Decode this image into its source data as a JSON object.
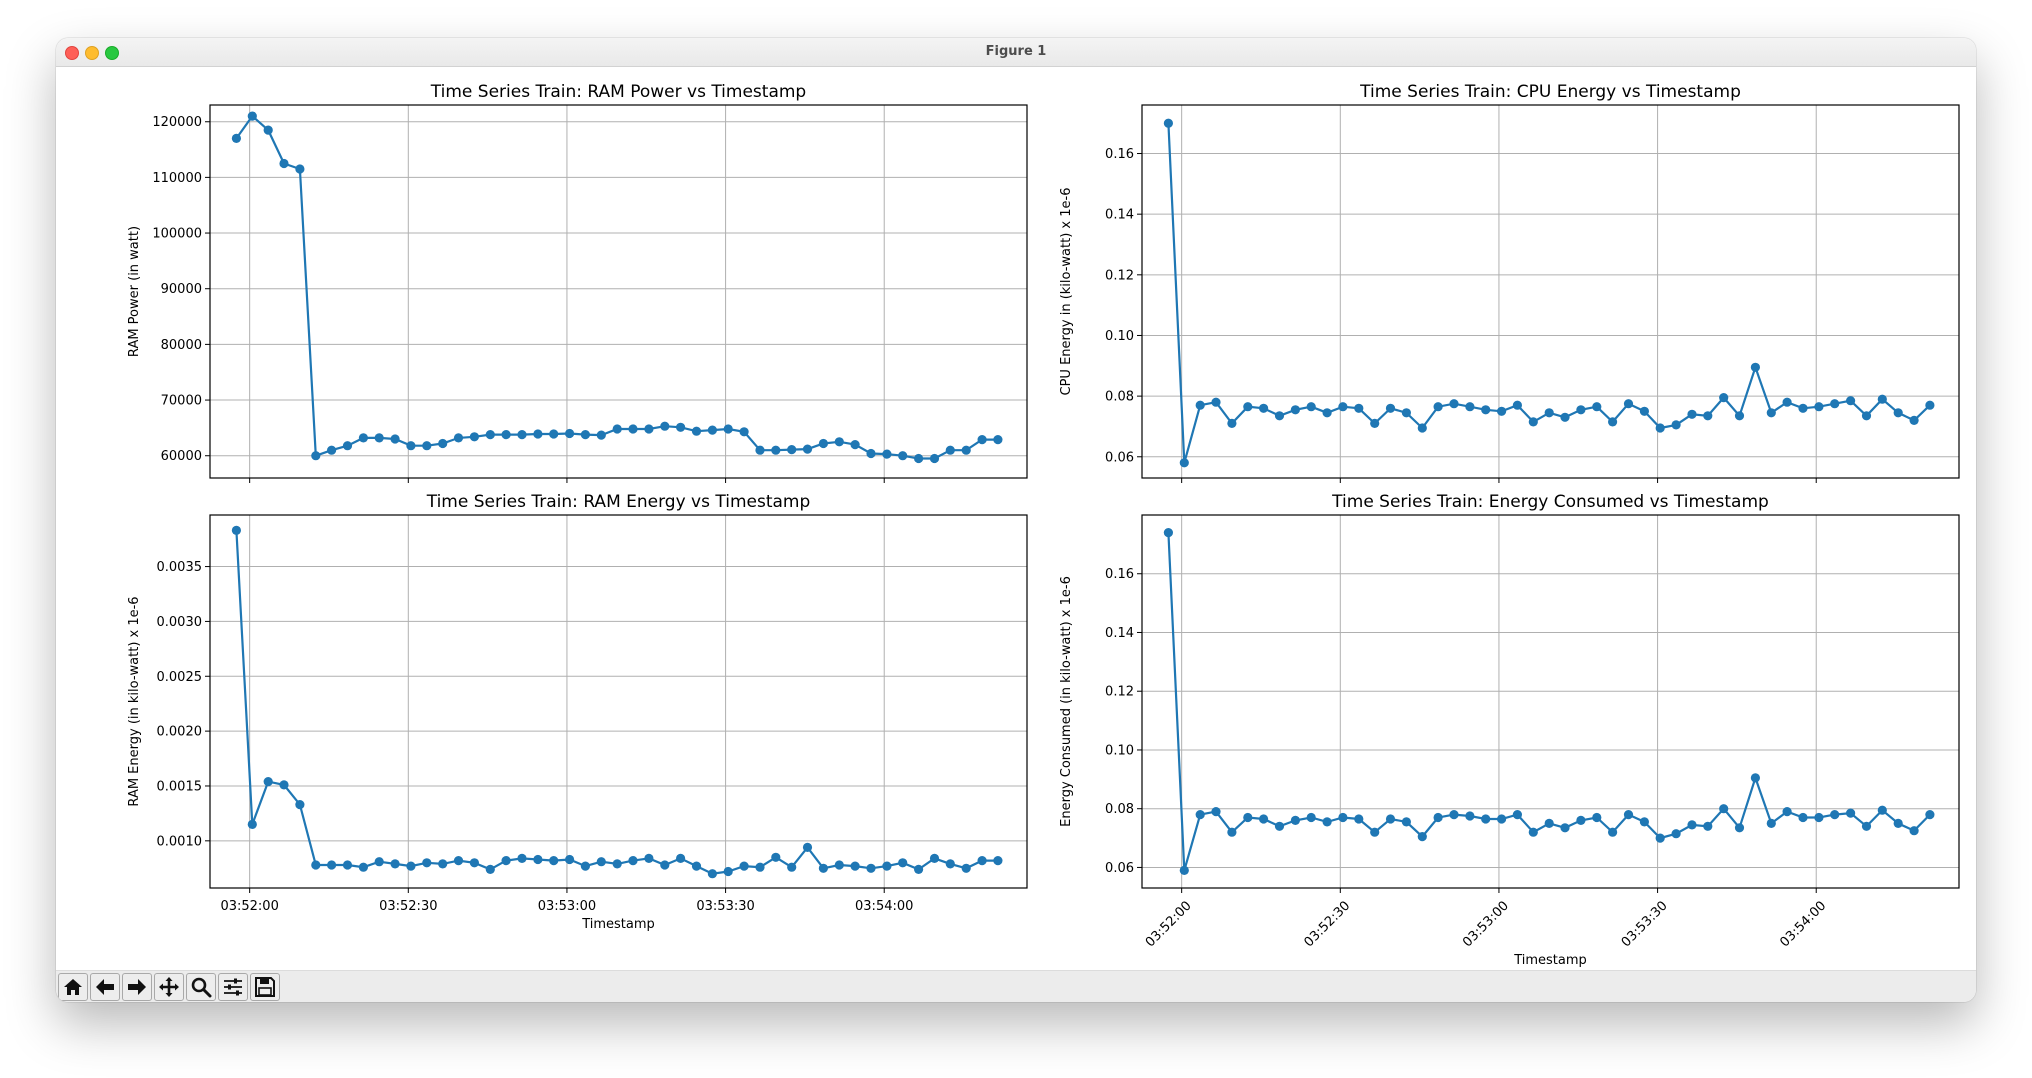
{
  "window": {
    "title": "Figure 1"
  },
  "toolbar": {
    "buttons": [
      {
        "name": "home-button",
        "icon": "home-icon"
      },
      {
        "name": "back-button",
        "icon": "arrow-left-icon"
      },
      {
        "name": "forward-button",
        "icon": "arrow-right-icon"
      },
      {
        "name": "pan-button",
        "icon": "move-icon"
      },
      {
        "name": "zoom-button",
        "icon": "magnifier-icon"
      },
      {
        "name": "configure-subplots-button",
        "icon": "sliders-icon"
      },
      {
        "name": "save-button",
        "icon": "floppy-disk-icon"
      }
    ]
  },
  "colors": {
    "series": "#1f77b4",
    "grid": "#b0b0b0"
  },
  "chart_data": [
    {
      "type": "line",
      "title": "Time Series Train: RAM Power vs Timestamp",
      "xlabel": "",
      "ylabel": "RAM Power (in watt)",
      "x_ticks": [
        "03:52:00",
        "03:52:30",
        "03:53:00",
        "03:53:30",
        "03:54:00"
      ],
      "x_tick_labels_visible": false,
      "y_ticks": [
        "60000",
        "70000",
        "80000",
        "90000",
        "100000",
        "110000",
        "120000"
      ],
      "xlim": [
        "03:51:52.5",
        "03:54:27"
      ],
      "ylim": [
        56000,
        123000
      ],
      "grid": true,
      "marker": "o",
      "x": [
        "03:51:57.5",
        "03:52:00.5",
        "03:52:03.5",
        "03:52:06.5",
        "03:52:09.5",
        "03:52:12.5",
        "03:52:15.5",
        "03:52:18.5",
        "03:52:21.5",
        "03:52:24.5",
        "03:52:27.5",
        "03:52:30.5",
        "03:52:33.5",
        "03:52:36.5",
        "03:52:39.5",
        "03:52:42.5",
        "03:52:45.5",
        "03:52:48.5",
        "03:52:51.5",
        "03:52:54.5",
        "03:52:57.5",
        "03:53:00.5",
        "03:53:03.5",
        "03:53:06.5",
        "03:53:09.5",
        "03:53:12.5",
        "03:53:15.5",
        "03:53:18.5",
        "03:53:21.5",
        "03:53:24.5",
        "03:53:27.5",
        "03:53:30.5",
        "03:53:33.5",
        "03:53:36.5",
        "03:53:39.5",
        "03:53:42.5",
        "03:53:45.5",
        "03:53:48.5",
        "03:53:51.5",
        "03:53:54.5",
        "03:53:57.5",
        "03:54:00.5",
        "03:54:03.5",
        "03:54:06.5",
        "03:54:09.5",
        "03:54:12.5",
        "03:54:15.5",
        "03:54:18.5",
        "03:54:21.5"
      ],
      "values": [
        117000,
        121000,
        118500,
        112500,
        111500,
        60000,
        61000,
        61800,
        63200,
        63200,
        63000,
        61800,
        61800,
        62200,
        63200,
        63400,
        63800,
        63800,
        63800,
        63900,
        63900,
        64000,
        63800,
        63700,
        64800,
        64800,
        64800,
        65300,
        65100,
        64400,
        64600,
        64800,
        64300,
        61000,
        61000,
        61100,
        61200,
        62200,
        62500,
        62000,
        60400,
        60300,
        60000,
        59500,
        59500,
        61000,
        61000,
        62900,
        62900
      ]
    },
    {
      "type": "line",
      "title": "Time Series Train: CPU Energy vs Timestamp",
      "xlabel": "",
      "ylabel": "CPU Energy in (kilo-watt) x 1e-6",
      "x_ticks": [
        "03:52:00",
        "03:52:30",
        "03:53:00",
        "03:53:30",
        "03:54:00"
      ],
      "x_tick_labels_visible": false,
      "y_ticks": [
        "0.06",
        "0.08",
        "0.10",
        "0.12",
        "0.14",
        "0.16"
      ],
      "xlim": [
        "03:51:52.5",
        "03:54:27"
      ],
      "ylim": [
        0.053,
        0.176
      ],
      "grid": true,
      "marker": "o",
      "x": [
        "03:51:57.5",
        "03:52:00.5",
        "03:52:03.5",
        "03:52:06.5",
        "03:52:09.5",
        "03:52:12.5",
        "03:52:15.5",
        "03:52:18.5",
        "03:52:21.5",
        "03:52:24.5",
        "03:52:27.5",
        "03:52:30.5",
        "03:52:33.5",
        "03:52:36.5",
        "03:52:39.5",
        "03:52:42.5",
        "03:52:45.5",
        "03:52:48.5",
        "03:52:51.5",
        "03:52:54.5",
        "03:52:57.5",
        "03:53:00.5",
        "03:53:03.5",
        "03:53:06.5",
        "03:53:09.5",
        "03:53:12.5",
        "03:53:15.5",
        "03:53:18.5",
        "03:53:21.5",
        "03:53:24.5",
        "03:53:27.5",
        "03:53:30.5",
        "03:53:33.5",
        "03:53:36.5",
        "03:53:39.5",
        "03:53:42.5",
        "03:53:45.5",
        "03:53:48.5",
        "03:53:51.5",
        "03:53:54.5",
        "03:53:57.5",
        "03:54:00.5",
        "03:54:03.5",
        "03:54:06.5",
        "03:54:09.5",
        "03:54:12.5",
        "03:54:15.5",
        "03:54:18.5",
        "03:54:21.5"
      ],
      "values": [
        0.17,
        0.058,
        0.077,
        0.078,
        0.071,
        0.0765,
        0.076,
        0.0735,
        0.0755,
        0.0765,
        0.0745,
        0.0765,
        0.076,
        0.071,
        0.076,
        0.0745,
        0.0695,
        0.0765,
        0.0775,
        0.0765,
        0.0755,
        0.075,
        0.077,
        0.0715,
        0.0745,
        0.073,
        0.0755,
        0.0765,
        0.0715,
        0.0775,
        0.075,
        0.0695,
        0.0705,
        0.074,
        0.0735,
        0.0795,
        0.0735,
        0.0895,
        0.0745,
        0.078,
        0.076,
        0.0765,
        0.0775,
        0.0785,
        0.0735,
        0.079,
        0.0745,
        0.072,
        0.077
      ]
    },
    {
      "type": "line",
      "title": "Time Series Train: RAM Energy vs Timestamp",
      "xlabel": "Timestamp",
      "ylabel": "RAM Energy (in kilo-watt) x 1e-6",
      "x_ticks": [
        "03:52:00",
        "03:52:30",
        "03:53:00",
        "03:53:30",
        "03:54:00"
      ],
      "x_tick_labels_visible": true,
      "x_tick_rotation": 0,
      "y_ticks": [
        "0.0010",
        "0.0015",
        "0.0020",
        "0.0025",
        "0.0030",
        "0.0035"
      ],
      "xlim": [
        "03:51:52.5",
        "03:54:27"
      ],
      "ylim": [
        0.00057,
        0.00397
      ],
      "grid": true,
      "marker": "o",
      "x": [
        "03:51:57.5",
        "03:52:00.5",
        "03:52:03.5",
        "03:52:06.5",
        "03:52:09.5",
        "03:52:12.5",
        "03:52:15.5",
        "03:52:18.5",
        "03:52:21.5",
        "03:52:24.5",
        "03:52:27.5",
        "03:52:30.5",
        "03:52:33.5",
        "03:52:36.5",
        "03:52:39.5",
        "03:52:42.5",
        "03:52:45.5",
        "03:52:48.5",
        "03:52:51.5",
        "03:52:54.5",
        "03:52:57.5",
        "03:53:00.5",
        "03:53:03.5",
        "03:53:06.5",
        "03:53:09.5",
        "03:53:12.5",
        "03:53:15.5",
        "03:53:18.5",
        "03:53:21.5",
        "03:53:24.5",
        "03:53:27.5",
        "03:53:30.5",
        "03:53:33.5",
        "03:53:36.5",
        "03:53:39.5",
        "03:53:42.5",
        "03:53:45.5",
        "03:53:48.5",
        "03:53:51.5",
        "03:53:54.5",
        "03:53:57.5",
        "03:54:00.5",
        "03:54:03.5",
        "03:54:06.5",
        "03:54:09.5",
        "03:54:12.5",
        "03:54:15.5",
        "03:54:18.5",
        "03:54:21.5"
      ],
      "values": [
        0.00383,
        0.00115,
        0.00154,
        0.00151,
        0.00133,
        0.00078,
        0.00078,
        0.00078,
        0.00076,
        0.00081,
        0.00079,
        0.00077,
        0.0008,
        0.00079,
        0.00082,
        0.0008,
        0.00074,
        0.00082,
        0.00084,
        0.00083,
        0.00082,
        0.00083,
        0.00077,
        0.00081,
        0.00079,
        0.00082,
        0.00084,
        0.00078,
        0.00084,
        0.00077,
        0.0007,
        0.00072,
        0.00077,
        0.00076,
        0.00085,
        0.00076,
        0.00094,
        0.00075,
        0.00078,
        0.00077,
        0.00075,
        0.00077,
        0.0008,
        0.00074,
        0.00084,
        0.00079,
        0.00075,
        0.00082,
        0.00082
      ]
    },
    {
      "type": "line",
      "title": "Time Series Train: Energy Consumed vs Timestamp",
      "xlabel": "Timestamp",
      "ylabel": "Energy Consumed (in kilo-watt) x 1e-6",
      "x_ticks": [
        "03:52:00",
        "03:52:30",
        "03:53:00",
        "03:53:30",
        "03:54:00"
      ],
      "x_tick_labels_visible": true,
      "x_tick_rotation": 45,
      "y_ticks": [
        "0.06",
        "0.08",
        "0.10",
        "0.12",
        "0.14",
        "0.16"
      ],
      "xlim": [
        "03:51:52.5",
        "03:54:27"
      ],
      "ylim": [
        0.053,
        0.18
      ],
      "grid": true,
      "marker": "o",
      "x": [
        "03:51:57.5",
        "03:52:00.5",
        "03:52:03.5",
        "03:52:06.5",
        "03:52:09.5",
        "03:52:12.5",
        "03:52:15.5",
        "03:52:18.5",
        "03:52:21.5",
        "03:52:24.5",
        "03:52:27.5",
        "03:52:30.5",
        "03:52:33.5",
        "03:52:36.5",
        "03:52:39.5",
        "03:52:42.5",
        "03:52:45.5",
        "03:52:48.5",
        "03:52:51.5",
        "03:52:54.5",
        "03:52:57.5",
        "03:53:00.5",
        "03:53:03.5",
        "03:53:06.5",
        "03:53:09.5",
        "03:53:12.5",
        "03:53:15.5",
        "03:53:18.5",
        "03:53:21.5",
        "03:53:24.5",
        "03:53:27.5",
        "03:53:30.5",
        "03:53:33.5",
        "03:53:36.5",
        "03:53:39.5",
        "03:53:42.5",
        "03:53:45.5",
        "03:53:48.5",
        "03:53:51.5",
        "03:53:54.5",
        "03:53:57.5",
        "03:54:00.5",
        "03:54:03.5",
        "03:54:06.5",
        "03:54:09.5",
        "03:54:12.5",
        "03:54:15.5",
        "03:54:18.5",
        "03:54:21.5"
      ],
      "values": [
        0.174,
        0.059,
        0.078,
        0.079,
        0.072,
        0.077,
        0.0765,
        0.074,
        0.076,
        0.077,
        0.0755,
        0.077,
        0.0765,
        0.072,
        0.0765,
        0.0755,
        0.0705,
        0.077,
        0.078,
        0.0775,
        0.0765,
        0.0765,
        0.078,
        0.072,
        0.075,
        0.0735,
        0.076,
        0.077,
        0.072,
        0.078,
        0.0755,
        0.07,
        0.0715,
        0.0745,
        0.074,
        0.08,
        0.0735,
        0.0905,
        0.075,
        0.079,
        0.077,
        0.077,
        0.078,
        0.0785,
        0.074,
        0.0795,
        0.075,
        0.0725,
        0.078
      ]
    }
  ]
}
